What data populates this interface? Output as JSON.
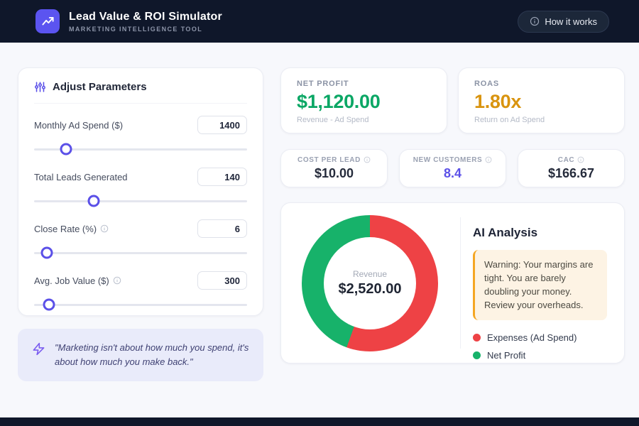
{
  "header": {
    "title": "Lead Value & ROI Simulator",
    "subtitle": "MARKETING INTELLIGENCE TOOL",
    "help_button": "How it works"
  },
  "parameters": {
    "title": "Adjust Parameters",
    "items": [
      {
        "label": "Monthly Ad Spend ($)",
        "value": "1400",
        "slider_percent": 15
      },
      {
        "label": "Total Leads Generated",
        "value": "140",
        "slider_percent": 28
      },
      {
        "label": "Close Rate (%)",
        "value": "6",
        "slider_percent": 6
      },
      {
        "label": "Avg. Job Value ($)",
        "value": "300",
        "slider_percent": 7
      }
    ]
  },
  "metrics": {
    "net_profit": {
      "label": "NET PROFIT",
      "value": "$1,120.00",
      "subtitle": "Revenue - Ad Spend",
      "color": "#0ba765"
    },
    "roas": {
      "label": "ROAS",
      "value": "1.80x",
      "subtitle": "Return on Ad Spend",
      "color": "#d9940f"
    }
  },
  "stats": [
    {
      "label": "COST PER LEAD",
      "value": "$10.00",
      "color": "#252b3b"
    },
    {
      "label": "NEW CUSTOMERS",
      "value": "8.4",
      "color": "#5b50e8"
    },
    {
      "label": "CAC",
      "value": "$166.67",
      "color": "#252b3b"
    }
  ],
  "chart_data": {
    "type": "pie",
    "donut": true,
    "start_angle_deg": 0,
    "center_label": "Revenue",
    "center_value": "$2,520.00",
    "segments": [
      {
        "name": "Expenses (Ad Spend)",
        "value": 1400,
        "color": "#ee4245"
      },
      {
        "name": "Net Profit",
        "value": 1120,
        "color": "#17b26a"
      }
    ],
    "legend_position": "right"
  },
  "analysis": {
    "title": "AI Analysis",
    "warning": "Warning: Your margins are tight. You are barely doubling your money. Review your overheads.",
    "legend": [
      {
        "label": "Expenses (Ad Spend)",
        "color": "#ee4245"
      },
      {
        "label": "Net Profit",
        "color": "#17b26a"
      }
    ]
  },
  "quote": "\"Marketing isn't about how much you spend, it's about how much you make back.\"",
  "colors": {
    "accent": "#5b50e8",
    "header_bg": "#0f172a",
    "warning_border": "#f5a623"
  }
}
